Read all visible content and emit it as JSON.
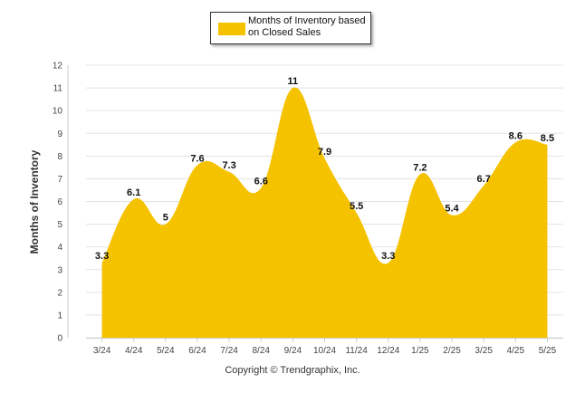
{
  "chart_data": {
    "type": "area",
    "categories": [
      "3/24",
      "4/24",
      "5/24",
      "6/24",
      "7/24",
      "8/24",
      "9/24",
      "10/24",
      "11/24",
      "12/24",
      "1/25",
      "2/25",
      "3/25",
      "4/25",
      "5/25"
    ],
    "series": [
      {
        "name": "Months of Inventory based on Closed Sales",
        "values": [
          3.3,
          6.1,
          5,
          7.6,
          7.3,
          6.6,
          11,
          7.9,
          5.5,
          3.3,
          7.2,
          5.4,
          6.7,
          8.6,
          8.5
        ],
        "color": "#F5C200"
      }
    ],
    "ylabel": "Months of Inventory",
    "xlabel": "",
    "ylim": [
      0,
      12
    ],
    "yticks": [
      0,
      1,
      2,
      3,
      4,
      5,
      6,
      7,
      8,
      9,
      10,
      11,
      12
    ],
    "grid": true,
    "legend": "top-center",
    "data_labels": [
      "3.3",
      "6.1",
      "5",
      "7.6",
      "7.3",
      "6.6",
      "11",
      "7.9",
      "5.5",
      "3.3",
      "7.2",
      "5.4",
      "6.7",
      "8.6",
      "8.5"
    ]
  },
  "legend": {
    "label": "Months of Inventory based on Closed Sales"
  },
  "footer": {
    "copyright": "Copyright © Trendgraphix, Inc."
  }
}
